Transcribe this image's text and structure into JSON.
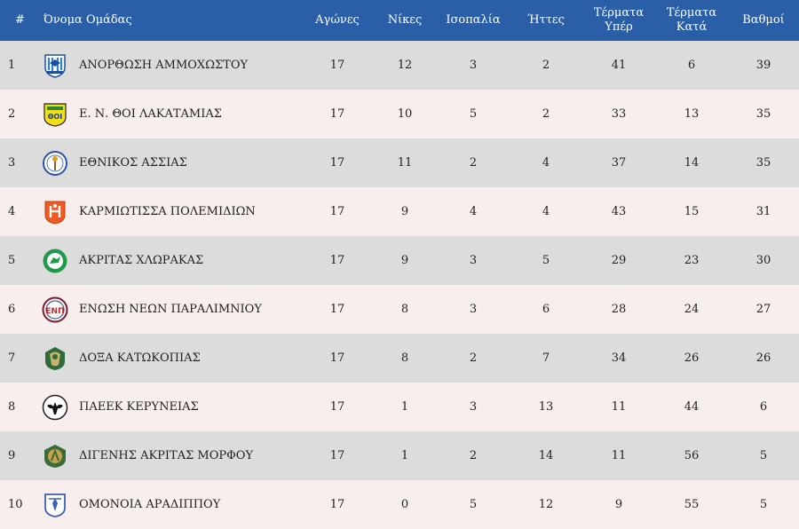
{
  "table": {
    "headers": {
      "rank": "#",
      "team": "Όνομα Ομάδας",
      "played": "Αγώνες",
      "wins": "Νίκες",
      "draws": "Ισοπαλία",
      "losses": "Ήττες",
      "goals_for_1": "Τέρματα",
      "goals_for_2": "Υπέρ",
      "goals_against_1": "Τέρματα",
      "goals_against_2": "Κατά",
      "points": "Βαθμοί"
    },
    "rows": [
      {
        "rank": "1",
        "team": "ΑΝΟΡΘΩΣΗ ΑΜΜΟΧΩΣΤΟΥ",
        "crest": "anorthosi-crest-icon",
        "played": "17",
        "wins": "12",
        "draws": "3",
        "losses": "2",
        "gf": "41",
        "ga": "6",
        "points": "39"
      },
      {
        "rank": "2",
        "team": "Ε. Ν. ΘΟΙ ΛΑΚΑΤΑΜΙΑΣ",
        "crest": "thoi-crest-icon",
        "played": "17",
        "wins": "10",
        "draws": "5",
        "losses": "2",
        "gf": "33",
        "ga": "13",
        "points": "35"
      },
      {
        "rank": "3",
        "team": "ΕΘΝΙΚΟΣ ΑΣΣΙΑΣ",
        "crest": "ethnikos-crest-icon",
        "played": "17",
        "wins": "11",
        "draws": "2",
        "losses": "4",
        "gf": "37",
        "ga": "14",
        "points": "35"
      },
      {
        "rank": "4",
        "team": "ΚΑΡΜΙΩΤΙΣΣΑ ΠΟΛΕΜΙΔΙΩΝ",
        "crest": "karmiotissa-crest-icon",
        "played": "17",
        "wins": "9",
        "draws": "4",
        "losses": "4",
        "gf": "43",
        "ga": "15",
        "points": "31"
      },
      {
        "rank": "5",
        "team": "ΑΚΡΙΤΑΣ ΧΛΩΡΑΚΑΣ",
        "crest": "akritas-crest-icon",
        "played": "17",
        "wins": "9",
        "draws": "3",
        "losses": "5",
        "gf": "29",
        "ga": "23",
        "points": "30"
      },
      {
        "rank": "6",
        "team": "ΕΝΩΣΗ ΝΕΩΝ ΠΑΡΑΛΙΜΝΙΟΥ",
        "crest": "enp-crest-icon",
        "played": "17",
        "wins": "8",
        "draws": "3",
        "losses": "6",
        "gf": "28",
        "ga": "24",
        "points": "27"
      },
      {
        "rank": "7",
        "team": "ΔΟΞΑ ΚΑΤΩΚΟΠΙΑΣ",
        "crest": "doxa-crest-icon",
        "played": "17",
        "wins": "8",
        "draws": "2",
        "losses": "7",
        "gf": "34",
        "ga": "26",
        "points": "26"
      },
      {
        "rank": "8",
        "team": "ΠΑΕΕΚ ΚΕΡΥΝΕΙΑΣ",
        "crest": "paeek-crest-icon",
        "played": "17",
        "wins": "1",
        "draws": "3",
        "losses": "13",
        "gf": "11",
        "ga": "44",
        "points": "6"
      },
      {
        "rank": "9",
        "team": "ΔΙΓΕΝΗΣ ΑΚΡΙΤΑΣ ΜΟΡΦΟΥ",
        "crest": "digenis-crest-icon",
        "played": "17",
        "wins": "1",
        "draws": "2",
        "losses": "14",
        "gf": "11",
        "ga": "56",
        "points": "5"
      },
      {
        "rank": "10",
        "team": "ΟΜΟΝΟΙΑ ΑΡΑΔΙΠΠΟΥ",
        "crest": "omonoia-crest-icon",
        "played": "17",
        "wins": "0",
        "draws": "5",
        "losses": "12",
        "gf": "9",
        "ga": "55",
        "points": "5"
      }
    ]
  },
  "colors": {
    "header_bg": "#2a5fa8",
    "row_odd": "#dcdcdc",
    "row_even": "#f8eeee"
  }
}
